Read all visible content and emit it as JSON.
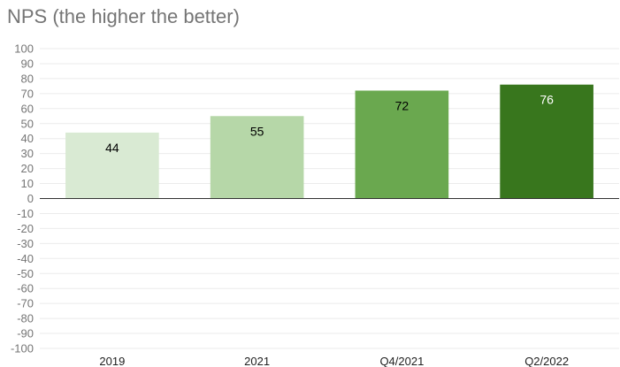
{
  "chart_data": {
    "type": "bar",
    "title": "NPS (the higher the better)",
    "categories": [
      "2019",
      "2021",
      "Q4/2021",
      "Q2/2022"
    ],
    "values": [
      44,
      55,
      72,
      76
    ],
    "colors": [
      "#d9ead3",
      "#b6d7a8",
      "#6aa84f",
      "#38761d"
    ],
    "label_colors": [
      "#000000",
      "#000000",
      "#000000",
      "#ffffff"
    ],
    "ylim": [
      -100,
      100
    ],
    "ytick_step": 10,
    "grid": true,
    "gridline_color": "#ebebeb",
    "zero_line_color": "#333333",
    "legend": "none",
    "xlabel": "",
    "ylabel": ""
  }
}
